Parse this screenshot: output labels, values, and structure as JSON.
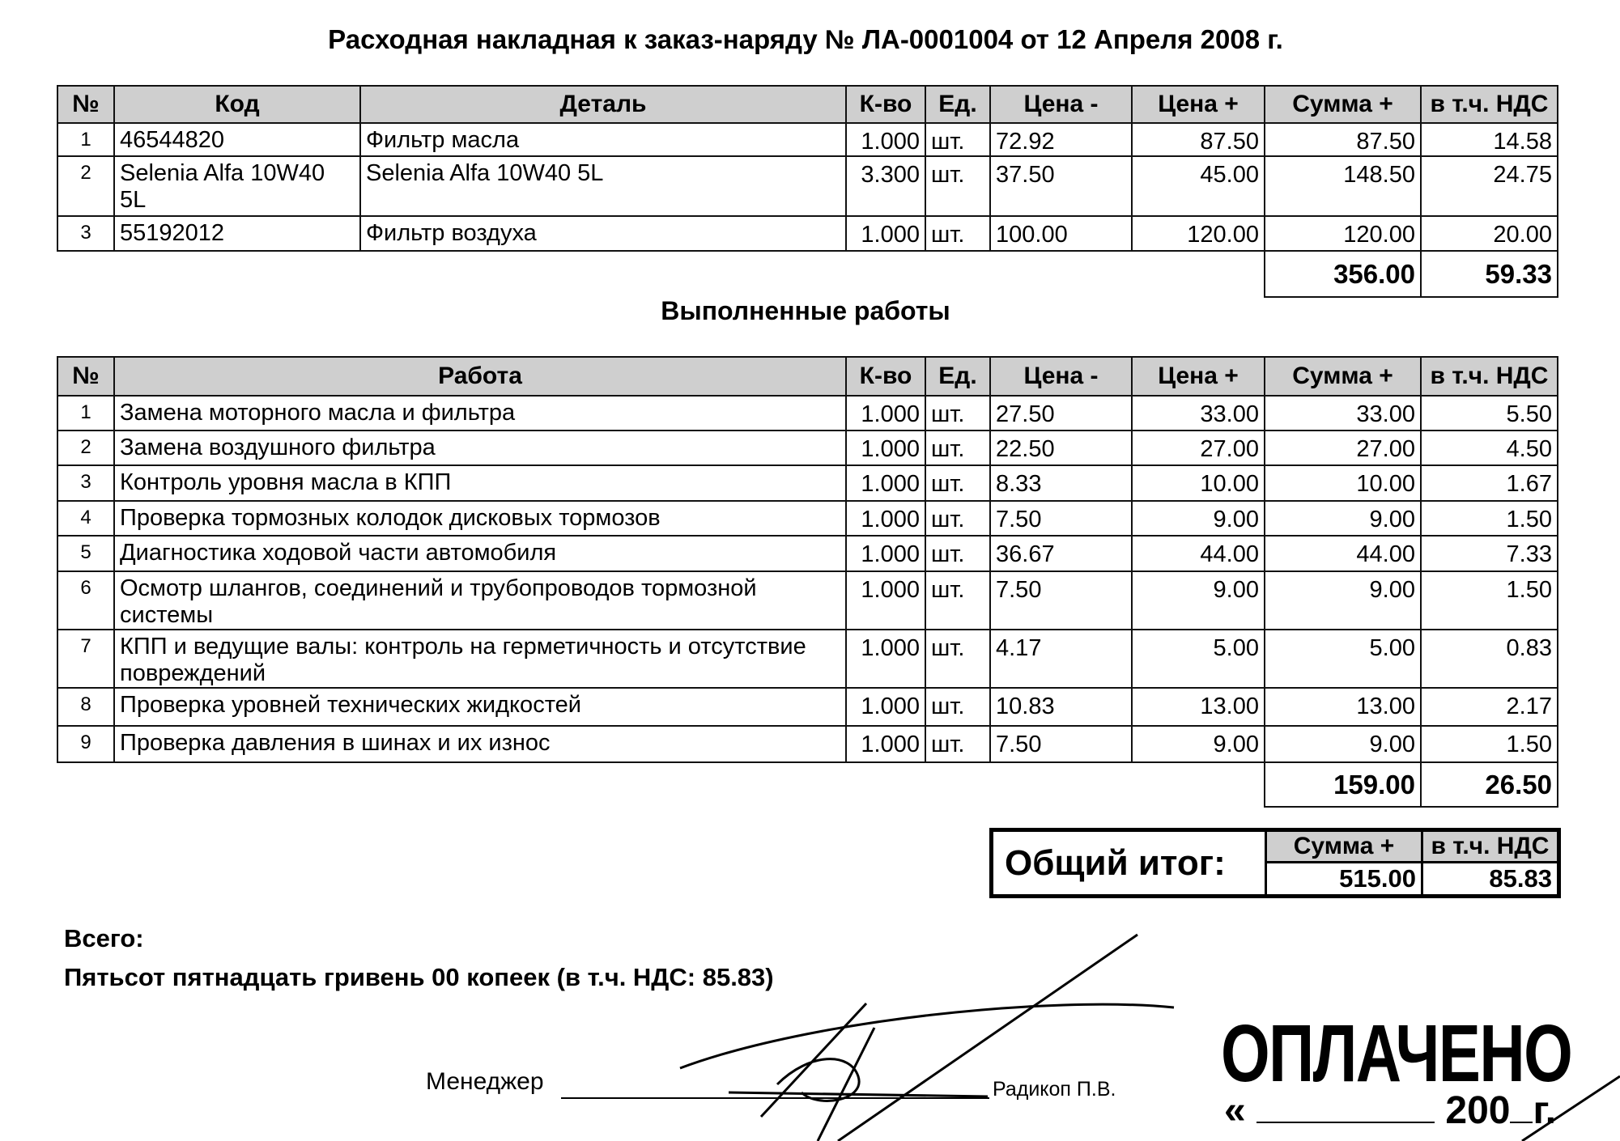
{
  "title": "Расходная накладная к заказ-наряду № ЛА-0001004 от 12 Апреля 2008 г.",
  "parts": {
    "headers": [
      "№",
      "Код",
      "Деталь",
      "К-во",
      "Ед.",
      "Цена -",
      "Цена +",
      "Сумма +",
      "в т.ч. НДС"
    ],
    "rows": [
      [
        "1",
        "46544820",
        "Фильтр масла",
        "1.000",
        "шт.",
        "72.92",
        "87.50",
        "87.50",
        "14.58"
      ],
      [
        "2",
        "Selenia Alfa 10W40 5L",
        "Selenia Alfa 10W40 5L",
        "3.300",
        "шт.",
        "37.50",
        "45.00",
        "148.50",
        "24.75"
      ],
      [
        "3",
        "55192012",
        "Фильтр воздуха",
        "1.000",
        "шт.",
        "100.00",
        "120.00",
        "120.00",
        "20.00"
      ]
    ],
    "total_sum": "356.00",
    "total_vat": "59.33"
  },
  "works_title": "Выполненные работы",
  "works": {
    "headers": [
      "№",
      "Работа",
      "К-во",
      "Ед.",
      "Цена -",
      "Цена +",
      "Сумма +",
      "в т.ч. НДС"
    ],
    "rows": [
      [
        "1",
        "Замена моторного масла и фильтра",
        "1.000",
        "шт.",
        "27.50",
        "33.00",
        "33.00",
        "5.50"
      ],
      [
        "2",
        "Замена воздушного фильтра",
        "1.000",
        "шт.",
        "22.50",
        "27.00",
        "27.00",
        "4.50"
      ],
      [
        "3",
        "Контроль уровня масла в КПП",
        "1.000",
        "шт.",
        "8.33",
        "10.00",
        "10.00",
        "1.67"
      ],
      [
        "4",
        "Проверка тормозных колодок дисковых тормозов",
        "1.000",
        "шт.",
        "7.50",
        "9.00",
        "9.00",
        "1.50"
      ],
      [
        "5",
        "Диагностика ходовой части автомобиля",
        "1.000",
        "шт.",
        "36.67",
        "44.00",
        "44.00",
        "7.33"
      ],
      [
        "6",
        "Осмотр шлангов, соединений и трубопроводов тормозной системы",
        "1.000",
        "шт.",
        "7.50",
        "9.00",
        "9.00",
        "1.50"
      ],
      [
        "7",
        "КПП и ведущие валы: контроль на герметичность и отсутствие повреждений",
        "1.000",
        "шт.",
        "4.17",
        "5.00",
        "5.00",
        "0.83"
      ],
      [
        "8",
        "Проверка уровней технических жидкостей",
        "1.000",
        "шт.",
        "10.83",
        "13.00",
        "13.00",
        "2.17"
      ],
      [
        "9",
        "Проверка давления в шинах и их износ",
        "1.000",
        "шт.",
        "7.50",
        "9.00",
        "9.00",
        "1.50"
      ]
    ],
    "total_sum": "159.00",
    "total_vat": "26.50"
  },
  "grand_total": {
    "label": "Общий итог:",
    "sum_header": "Сумма +",
    "vat_header": "в т.ч. НДС",
    "sum": "515.00",
    "vat": "85.83"
  },
  "summary": {
    "label": "Всего:",
    "in_words": "Пятьсот пятнадцать гривень 00 копеек (в т.ч. НДС: 85.83)"
  },
  "signature": {
    "role": "Менеджер",
    "name": "Радикоп П.В."
  },
  "stamp": {
    "text": "ОПЛАЧЕНО",
    "date_open_quote": "«",
    "date_year_prefix": "200",
    "date_suffix": "г."
  }
}
